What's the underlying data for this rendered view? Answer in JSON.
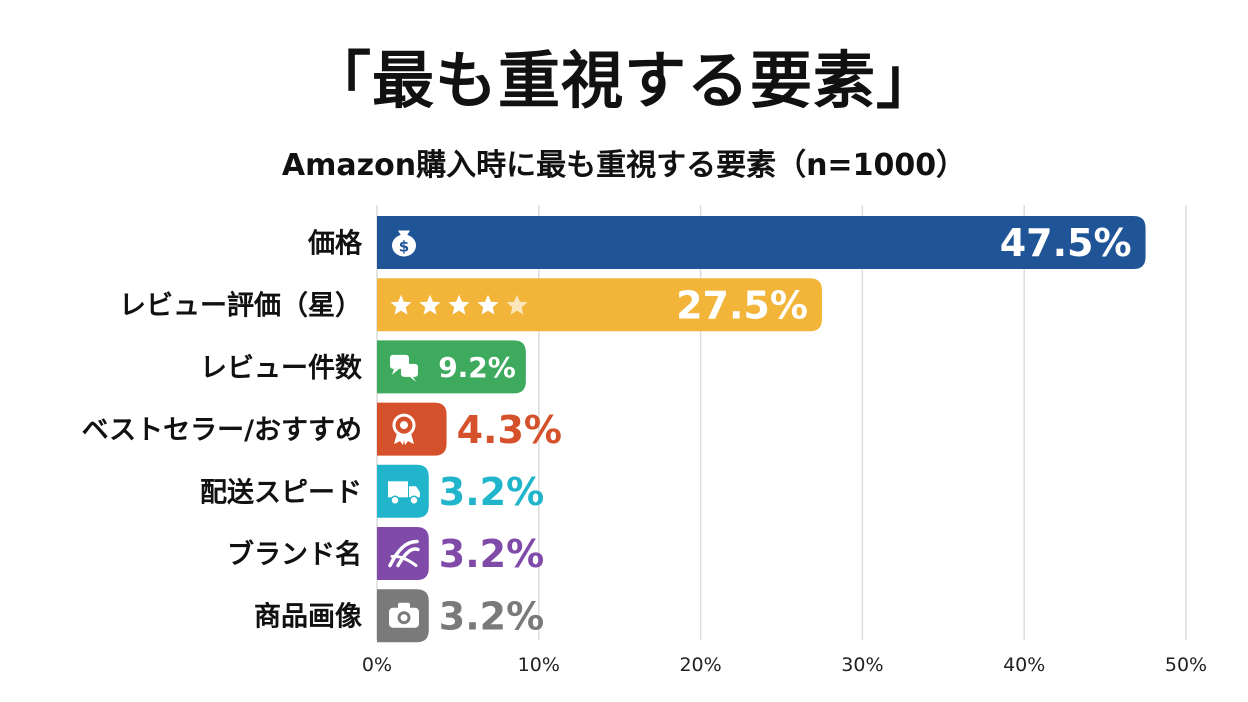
{
  "title": "「最も重視する要素」",
  "subtitle": "Amazon購入時に最も重視する要素（n=1000）",
  "chart_data": {
    "type": "bar",
    "orientation": "horizontal",
    "categories": [
      "価格",
      "レビュー評価（星）",
      "レビュー件数",
      "ベストセラー/おすすめ",
      "配送スピード",
      "ブランド名",
      "商品画像"
    ],
    "values": [
      47.5,
      27.5,
      9.2,
      4.3,
      3.2,
      3.2,
      3.2
    ],
    "value_labels": [
      "47.5%",
      "27.5%",
      "9.2%",
      "4.3%",
      "3.2%",
      "3.2%",
      "3.2%"
    ],
    "colors": [
      "#1f5596",
      "#f2b53a",
      "#3daa5e",
      "#d5512c",
      "#21b5cc",
      "#7f4aa8",
      "#7a7a7a"
    ],
    "icons": [
      "money-bag-icon",
      "stars-icon",
      "chat-bubbles-icon",
      "award-ribbon-icon",
      "truck-icon",
      "brand-tag-icon",
      "camera-icon"
    ],
    "x_ticks": [
      0,
      10,
      20,
      30,
      40,
      50
    ],
    "x_tick_labels": [
      "0%",
      "10%",
      "20%",
      "30%",
      "40%",
      "50%"
    ],
    "xlim": [
      0,
      50
    ],
    "grid": true,
    "xlabel": "",
    "ylabel": ""
  }
}
